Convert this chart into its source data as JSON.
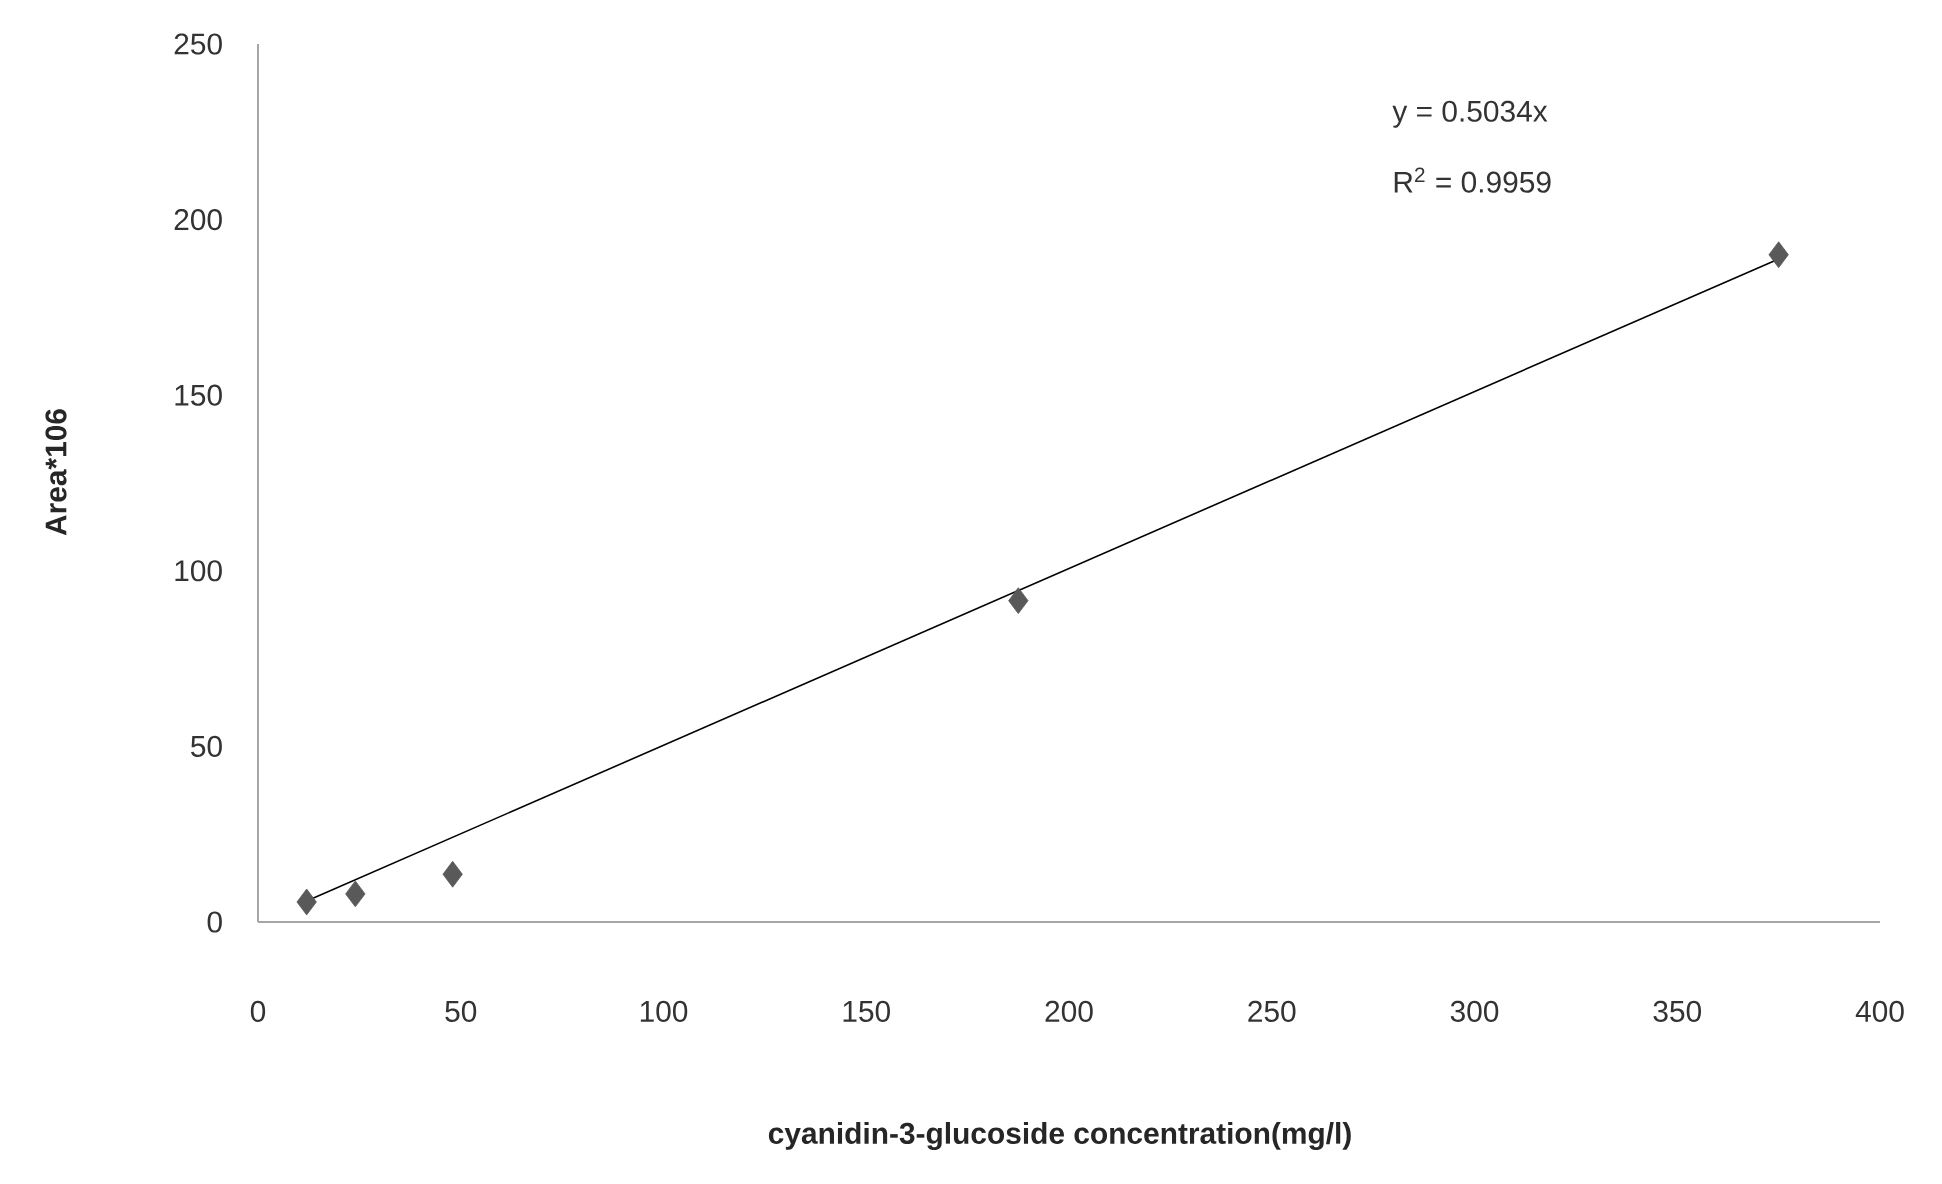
{
  "chart_data": {
    "type": "scatter",
    "xlabel": "cyanidin-3-glucoside concentration(mg/l)",
    "ylabel": "Area*106",
    "xlim": [
      0,
      400
    ],
    "ylim": [
      0,
      250
    ],
    "xticks": [
      0,
      50,
      100,
      150,
      200,
      250,
      300,
      350,
      400
    ],
    "yticks": [
      0,
      50,
      100,
      150,
      200,
      250
    ],
    "grid": false,
    "series": [
      {
        "color": "#595959",
        "marker": "diamond",
        "x": [
          12,
          24,
          48,
          187.5,
          375
        ],
        "values": [
          5.7,
          8,
          13.6,
          91.5,
          190
        ]
      },
      {
        "type": "line",
        "color": "#000000",
        "marker": "none",
        "line_style": "solid",
        "x": [
          12,
          375
        ],
        "values": [
          6.0,
          188.8
        ]
      }
    ],
    "annotations": [
      "y = 0.5034x",
      "R$^{2}$ = 0.9959"
    ]
  }
}
